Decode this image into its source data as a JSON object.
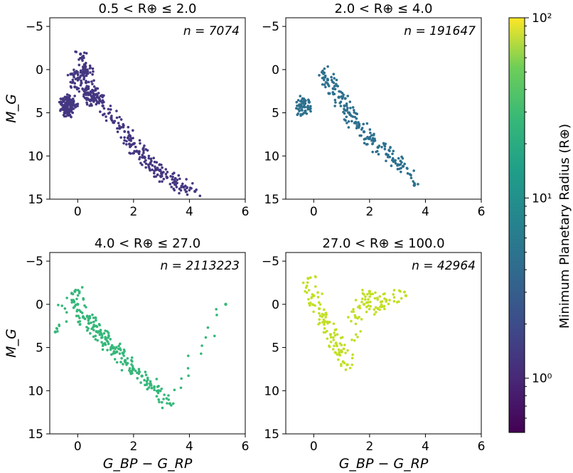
{
  "chart_data": {
    "type": "scatter",
    "xlabel": "G_BP − G_RP",
    "ylabel": "M_G",
    "xlim": [
      -1,
      6
    ],
    "ylim": [
      15,
      -6
    ],
    "x_ticks": [
      "0",
      "2",
      "4",
      "6"
    ],
    "y_ticks": [
      "−5",
      "0",
      "5",
      "10",
      "15"
    ],
    "y_tick_values": [
      -5,
      0,
      5,
      10,
      15
    ],
    "x_tick_values": [
      0,
      2,
      4,
      6
    ],
    "colorbar": {
      "label": "Minimum Planetary Radius (R⊕)",
      "scale": "log",
      "range": [
        0.5,
        100
      ],
      "colormap": "viridis",
      "ticks": [
        "10⁰",
        "10¹",
        "10²"
      ],
      "tick_values": [
        1,
        10,
        100
      ]
    },
    "panels": [
      {
        "title": "0.5 < R⊕ ≤ 2.0",
        "n_label": "n = 7074",
        "color": "#453781",
        "clusters": [
          {
            "x": [
              -0.45,
              -0.4,
              -0.3,
              -0.2,
              -0.35,
              -0.5,
              -0.25,
              -0.45,
              -0.3,
              -0.4
            ],
            "y": [
              3.2,
              4.0,
              4.6,
              3.8,
              5.0,
              3.6,
              4.3,
              4.8,
              3.4,
              4.1
            ]
          },
          {
            "x": [
              0.4,
              0.55,
              0.6,
              0.7,
              0.5,
              0.45,
              0.65
            ],
            "y": [
              2.8,
              3.1,
              3.5,
              3.2,
              2.6,
              3.6,
              2.9
            ]
          },
          {
            "x": [
              -0.2,
              0.0,
              0.2,
              0.3,
              -0.1,
              0.1,
              0.35,
              0.25
            ],
            "y": [
              0.5,
              1.0,
              -0.3,
              1.5,
              2.0,
              -1.8,
              0.2,
              2.4
            ]
          },
          {
            "x": [
              0.9,
              1.2,
              1.5,
              1.8,
              2.0,
              2.2,
              2.4,
              2.6,
              2.8,
              3.0,
              3.2,
              3.5,
              3.8,
              4.2
            ],
            "y": [
              4.2,
              5.6,
              6.8,
              7.9,
              8.6,
              9.5,
              10.2,
              10.9,
              11.6,
              12.0,
              12.5,
              13.0,
              13.6,
              14.1
            ]
          }
        ]
      },
      {
        "title": "2.0 < R⊕ ≤ 4.0",
        "n_label": "n = 191647",
        "color": "#2d708e",
        "clusters": [
          {
            "x": [
              -0.4,
              -0.35,
              -0.3,
              -0.45,
              -0.3
            ],
            "y": [
              3.8,
              4.3,
              4.8,
              4.1,
              3.6
            ]
          },
          {
            "x": [
              0.3,
              0.5,
              0.7,
              0.9,
              1.1,
              1.3,
              1.5,
              1.8,
              2.0,
              2.3,
              2.6,
              2.9,
              3.2,
              3.6
            ],
            "y": [
              0.3,
              1.2,
              2.2,
              3.2,
              4.2,
              5.2,
              6.1,
              7.2,
              8.0,
              9.0,
              9.8,
              10.6,
              11.2,
              13.4
            ]
          }
        ]
      },
      {
        "title": "4.0 < R⊕ ≤ 27.0",
        "n_label": "n = 2113223",
        "color": "#35b779",
        "clusters": [
          {
            "x": [
              -0.8,
              -0.1,
              0.0,
              0.2,
              0.4,
              0.6,
              0.8,
              1.0,
              1.2,
              1.4,
              1.7,
              2.0,
              2.3,
              2.6,
              2.9,
              3.3,
              5.3
            ],
            "y": [
              3.2,
              -1.5,
              0.0,
              1.5,
              2.2,
              2.5,
              3.5,
              4.0,
              5.0,
              5.5,
              6.5,
              7.5,
              8.3,
              9.2,
              10.0,
              11.5,
              0.0
            ]
          }
        ]
      },
      {
        "title": "27.0 < R⊕ ≤ 100.0",
        "n_label": "n = 42964",
        "color": "#c2df23",
        "clusters": [
          {
            "x": [
              -0.2,
              0.0,
              0.2,
              0.4,
              0.6,
              0.8,
              1.0,
              1.2,
              1.5,
              1.8,
              2.0,
              2.3,
              2.6,
              3.3
            ],
            "y": [
              -3.0,
              -1.0,
              0.5,
              2.0,
              3.5,
              4.5,
              5.5,
              7.0,
              1.5,
              0.0,
              -1.5,
              0.5,
              -0.5,
              -1.0
            ]
          }
        ]
      }
    ]
  }
}
